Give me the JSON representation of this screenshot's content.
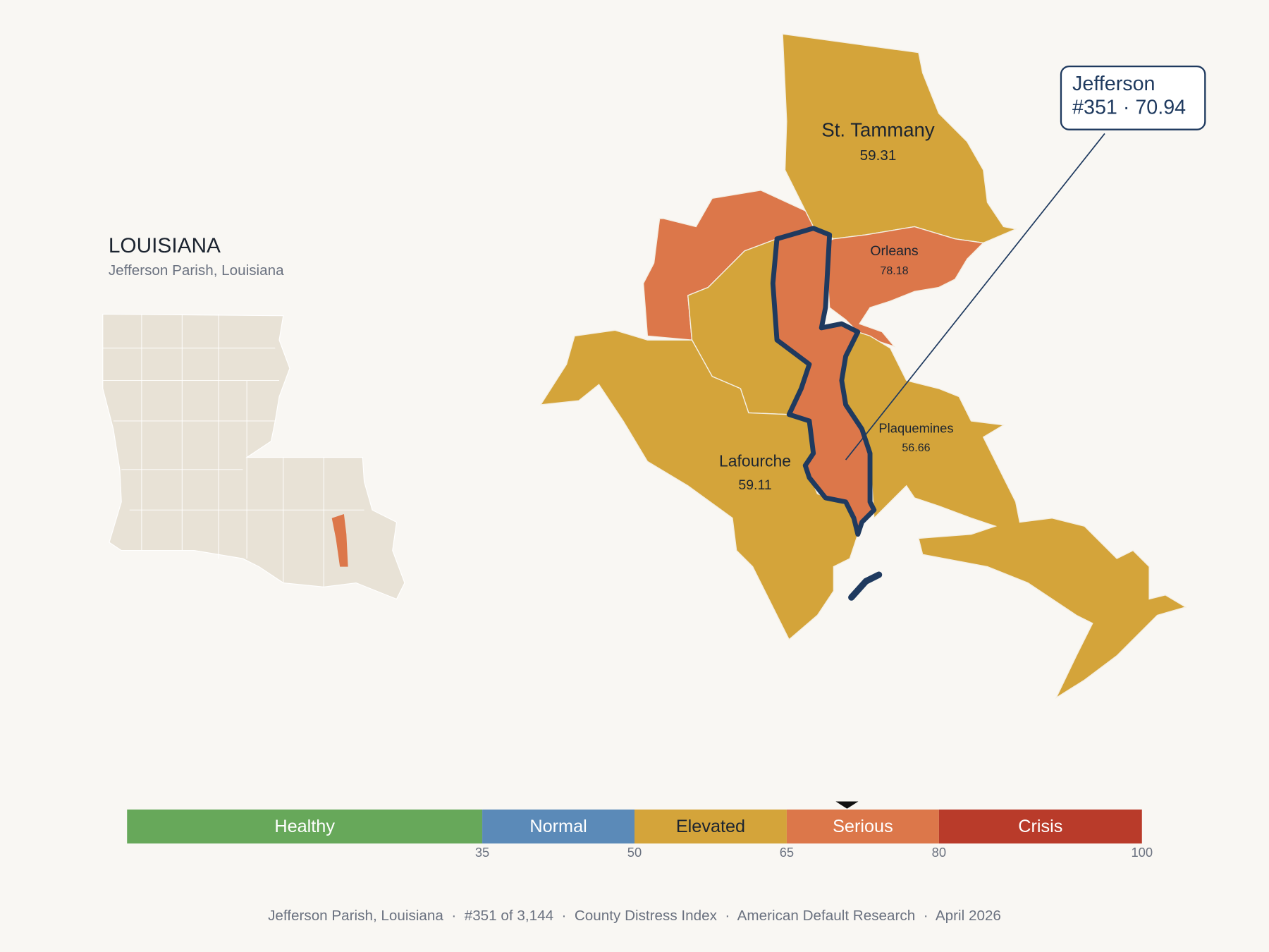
{
  "header": {
    "title": "LOUISIANA",
    "subtitle": "Jefferson Parish, Louisiana"
  },
  "parishes": [
    {
      "name": "St. Tammany",
      "score": 59.31
    },
    {
      "name": "Orleans",
      "score": 78.18
    },
    {
      "name": "Plaquemines",
      "score": 56.66
    },
    {
      "name": "Lafourche",
      "score": 59.11
    }
  ],
  "highlight": {
    "name": "Jefferson",
    "label": "#351 · 70.94",
    "score": 70.94
  },
  "scale": {
    "min": 0,
    "max": 100,
    "bands": [
      {
        "label": "Healthy",
        "from": 0,
        "to": 35,
        "color": "#67a85a",
        "text_color": "#ffffff"
      },
      {
        "label": "Normal",
        "from": 35,
        "to": 50,
        "color": "#5b8ab8",
        "text_color": "#ffffff"
      },
      {
        "label": "Elevated",
        "from": 50,
        "to": 65,
        "color": "#d4a43a",
        "text_color": "#1c2430"
      },
      {
        "label": "Serious",
        "from": 65,
        "to": 80,
        "color": "#dc774a",
        "text_color": "#ffffff"
      },
      {
        "label": "Crisis",
        "from": 80,
        "to": 100,
        "color": "#b93b2a",
        "text_color": "#ffffff"
      }
    ],
    "ticks": [
      35,
      50,
      65,
      80,
      100
    ]
  },
  "footer": "Jefferson Parish, Louisiana  ·  #351 of 3,144  ·  County Distress Index  ·  American Default Research  ·  April 2026"
}
